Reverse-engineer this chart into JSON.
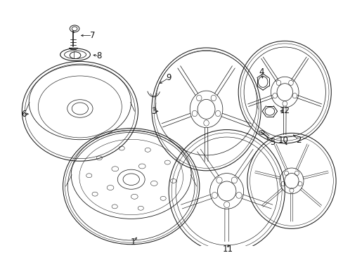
{
  "background_color": "#ffffff",
  "fig_width": 4.89,
  "fig_height": 3.6,
  "dpi": 100,
  "label_fontsize": 8.5,
  "line_color": "#1a1a1a",
  "text_color": "#111111",
  "lw": 0.75
}
